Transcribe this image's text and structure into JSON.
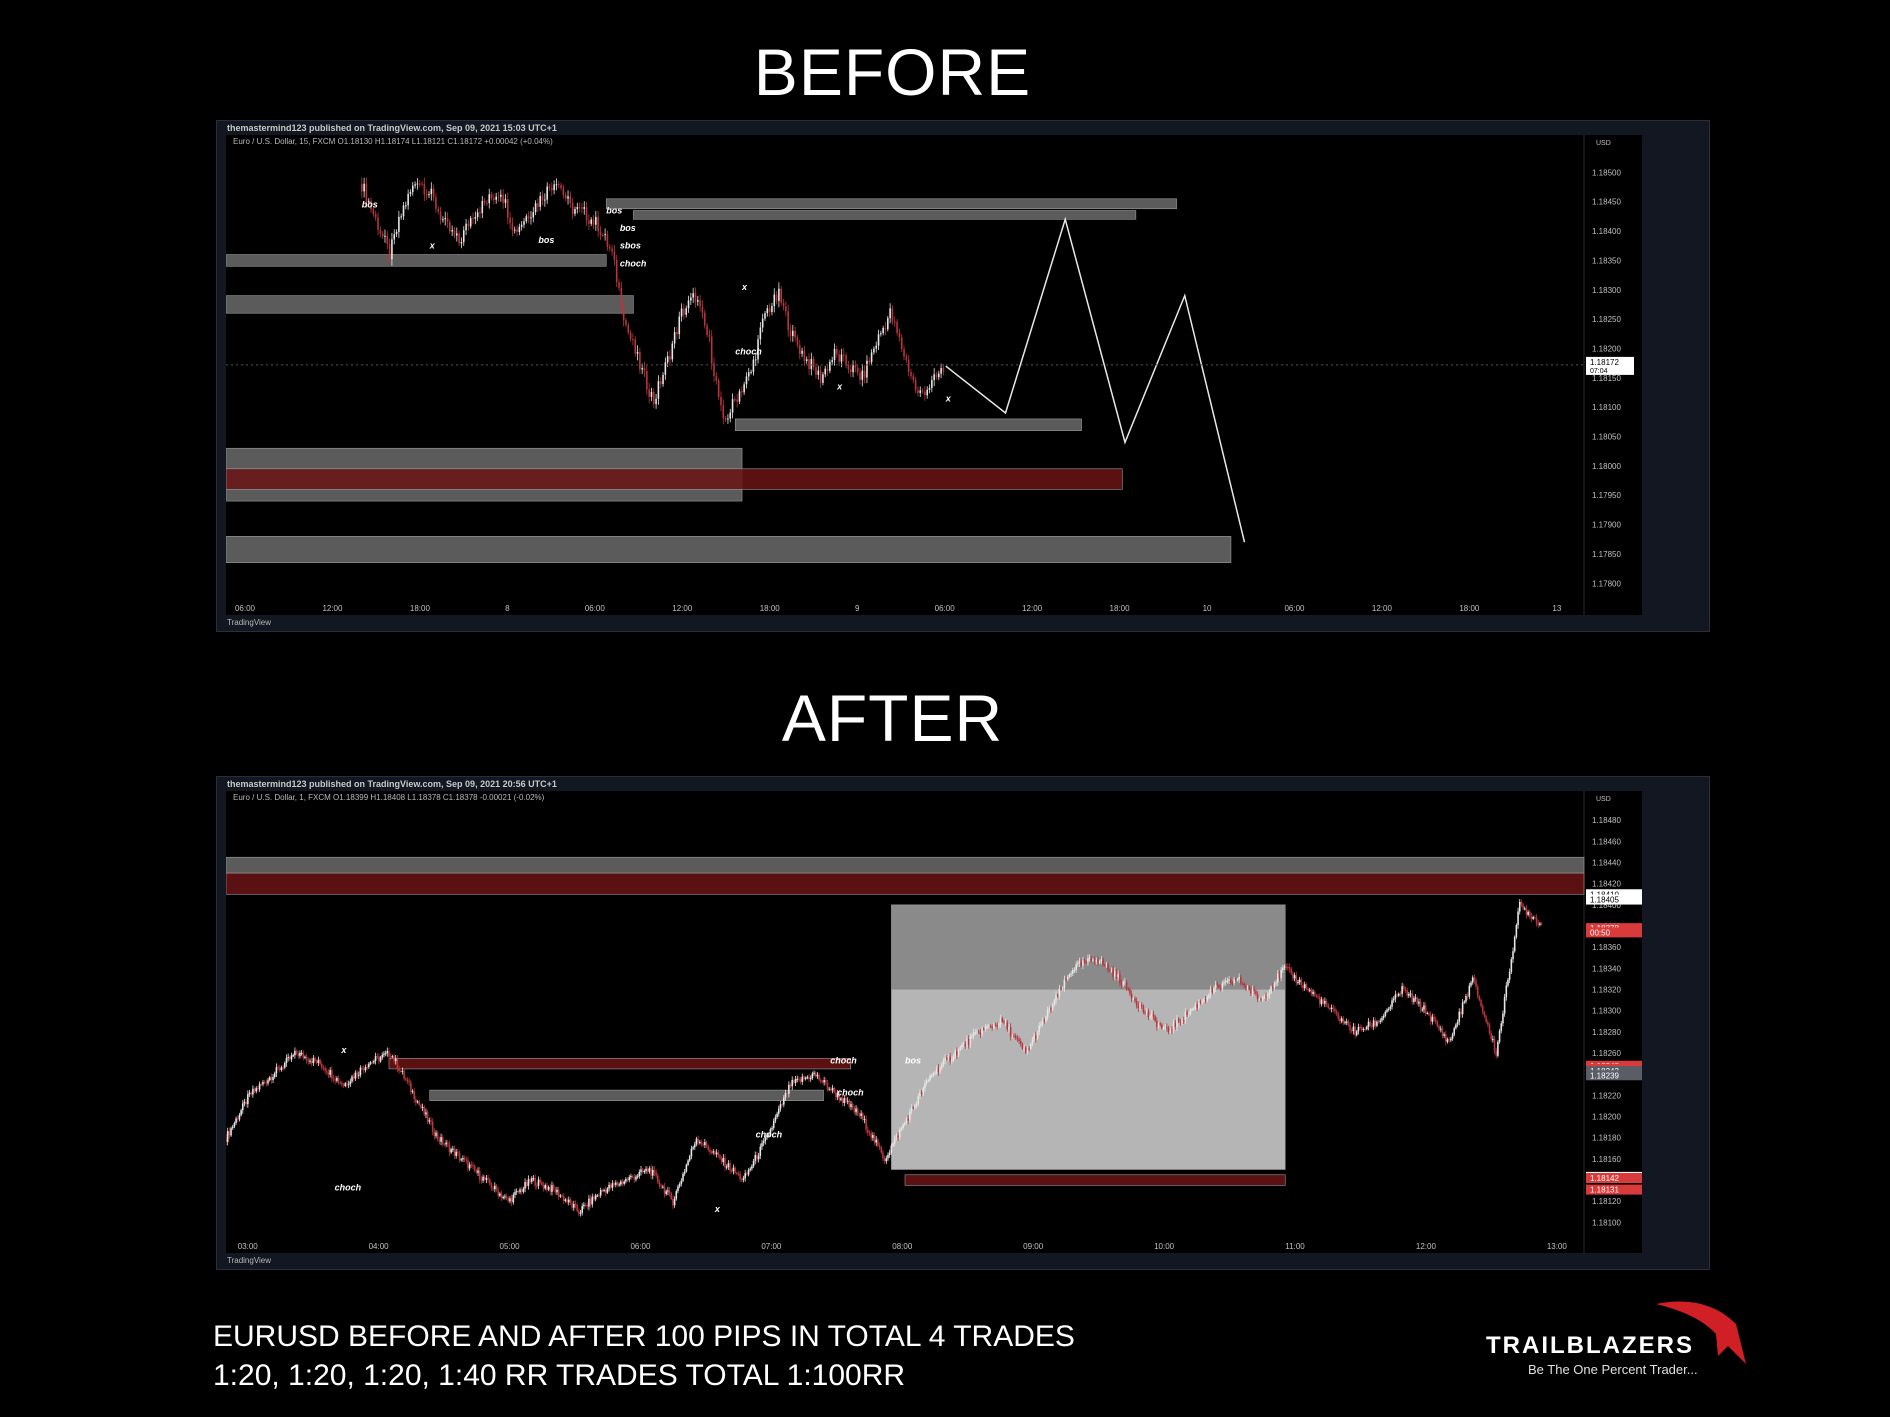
{
  "before": {
    "heading": "BEFORE",
    "publisher": "themastermind123 published on TradingView.com, Sep 09, 2021 15:03 UTC+1",
    "symbol_line": "Euro / U.S. Dollar, 15, FXCM  O1.18130  H1.18174  L1.18121  C1.18172  +0.00042 (+0.04%)",
    "logo_text": "TradingView"
  },
  "after": {
    "heading": "AFTER",
    "publisher": "themastermind123 published on TradingView.com, Sep 09, 2021 20:56 UTC+1",
    "symbol_line": "Euro / U.S. Dollar, 1, FXCM  O1.18399  H1.18408  L1.18378  C1.18378  -0.00021 (-0.02%)",
    "logo_text": "TradingView"
  },
  "caption": {
    "line1": "EURUSD BEFORE AND AFTER  100 PIPS IN TOTAL 4 TRADES",
    "line2": "1:20, 1:20, 1:20, 1:40 RR TRADES TOTAL 1:100RR"
  },
  "brand": {
    "name": "TRAILBLAZERS",
    "tagline": "Be The One Percent Trader..."
  },
  "colors": {
    "bull": "#e6e6e6",
    "bear": "#b8363b",
    "zone_grey": "#7a7a7a",
    "zone_red": "#6b1414",
    "price_red": "#d93a3a",
    "brand_red": "#d11f26"
  },
  "chart_data": [
    {
      "type": "candlestick",
      "instrument": "EUR/USD",
      "timeframe": "15",
      "currency": "USD",
      "x_ticks": [
        "06:00",
        "12:00",
        "18:00",
        "8",
        "06:00",
        "12:00",
        "18:00",
        "9",
        "06:00",
        "12:00",
        "18:00",
        "10",
        "06:00",
        "12:00",
        "18:00",
        "13"
      ],
      "y_ticks": [
        1.185,
        1.1845,
        1.184,
        1.1835,
        1.183,
        1.1825,
        1.182,
        1.1815,
        1.181,
        1.1805,
        1.18,
        1.1795,
        1.179,
        1.1785,
        1.178
      ],
      "ylim": [
        1.1778,
        1.1855
      ],
      "last_price": 1.18172,
      "countdown": "07:04",
      "close_path": [
        1.1848,
        1.1842,
        1.1836,
        1.1844,
        1.1849,
        1.1846,
        1.1841,
        1.1838,
        1.1843,
        1.1845,
        1.1847,
        1.184,
        1.1843,
        1.1846,
        1.1849,
        1.1844,
        1.1843,
        1.1841,
        1.1836,
        1.1824,
        1.1817,
        1.1811,
        1.1818,
        1.1826,
        1.1829,
        1.1821,
        1.1807,
        1.1812,
        1.1816,
        1.1826,
        1.1829,
        1.1822,
        1.1818,
        1.1815,
        1.1819,
        1.1817,
        1.1815,
        1.1821,
        1.1826,
        1.1819,
        1.1812,
        1.1814,
        1.1817
      ],
      "projection_path": [
        1.1817,
        1.1809,
        1.1842,
        1.1804,
        1.1829,
        1.1787
      ],
      "zones": [
        {
          "kind": "grey",
          "price_top": 1.18455,
          "price_bottom": 1.18438,
          "x_from": 0.28,
          "x_to": 0.7
        },
        {
          "kind": "grey",
          "price_top": 1.18435,
          "price_bottom": 1.1842,
          "x_from": 0.3,
          "x_to": 0.67
        },
        {
          "kind": "grey",
          "price_top": 1.1836,
          "price_bottom": 1.1834,
          "x_from": 0.0,
          "x_to": 0.28
        },
        {
          "kind": "grey",
          "price_top": 1.1829,
          "price_bottom": 1.1826,
          "x_from": 0.0,
          "x_to": 0.3
        },
        {
          "kind": "grey",
          "price_top": 1.1808,
          "price_bottom": 1.1806,
          "x_from": 0.375,
          "x_to": 0.63
        },
        {
          "kind": "grey",
          "price_top": 1.1803,
          "price_bottom": 1.1794,
          "x_from": 0.0,
          "x_to": 0.38
        },
        {
          "kind": "red",
          "price_top": 1.17995,
          "price_bottom": 1.1796,
          "x_from": 0.0,
          "x_to": 0.66
        },
        {
          "kind": "grey",
          "price_top": 1.1788,
          "price_bottom": 1.17835,
          "x_from": 0.0,
          "x_to": 0.74
        }
      ],
      "annotations": [
        {
          "text": "bos",
          "price": 1.1844,
          "x": 0.1
        },
        {
          "text": "bos",
          "price": 1.1843,
          "x": 0.28
        },
        {
          "text": "bos",
          "price": 1.184,
          "x": 0.29
        },
        {
          "text": "sbos",
          "price": 1.1837,
          "x": 0.29
        },
        {
          "text": "choch",
          "price": 1.1834,
          "x": 0.29
        },
        {
          "text": "bos",
          "price": 1.1838,
          "x": 0.23
        },
        {
          "text": "choch",
          "price": 1.1819,
          "x": 0.375
        },
        {
          "text": "x",
          "price": 1.1837,
          "x": 0.15
        },
        {
          "text": "x",
          "price": 1.183,
          "x": 0.38
        },
        {
          "text": "x",
          "price": 1.1813,
          "x": 0.45
        },
        {
          "text": "x",
          "price": 1.1811,
          "x": 0.53
        }
      ]
    },
    {
      "type": "candlestick",
      "instrument": "EUR/USD",
      "timeframe": "1",
      "currency": "USD",
      "x_ticks": [
        "03:00",
        "04:00",
        "05:00",
        "06:00",
        "07:00",
        "08:00",
        "09:00",
        "10:00",
        "11:00",
        "12:00",
        "13:00"
      ],
      "y_ticks": [
        1.1848,
        1.1846,
        1.1844,
        1.1842,
        1.184,
        1.1838,
        1.1836,
        1.1834,
        1.1832,
        1.183,
        1.1828,
        1.1826,
        1.1824,
        1.1822,
        1.182,
        1.1818,
        1.1816,
        1.1814,
        1.1812,
        1.181
      ],
      "ylim": [
        1.1809,
        1.185
      ],
      "price_labels": [
        {
          "price": 1.1841,
          "text": "1.18410",
          "style": "white"
        },
        {
          "price": 1.18405,
          "text": "1.18405",
          "style": "white"
        },
        {
          "price": 1.18378,
          "text": "1.18378",
          "style": "red"
        },
        {
          "price": 1.18374,
          "text": "00:50",
          "style": "red"
        },
        {
          "price": 1.18248,
          "text": "1.18248",
          "style": "red"
        },
        {
          "price": 1.18245,
          "text": "1.18245",
          "style": "red"
        },
        {
          "price": 1.18243,
          "text": "1.18243",
          "style": "grey"
        },
        {
          "price": 1.18239,
          "text": "1.18239",
          "style": "grey"
        },
        {
          "price": 1.18143,
          "text": "1.18143",
          "style": "white"
        },
        {
          "price": 1.18142,
          "text": "1.18142",
          "style": "white"
        },
        {
          "price": 1.18142,
          "text": "1.18142",
          "style": "red"
        },
        {
          "price": 1.18131,
          "text": "1.18131",
          "style": "red"
        }
      ],
      "close_path": [
        1.1818,
        1.1822,
        1.1824,
        1.1826,
        1.1825,
        1.1823,
        1.1825,
        1.1826,
        1.1822,
        1.1818,
        1.1816,
        1.1814,
        1.1812,
        1.1814,
        1.1813,
        1.1811,
        1.1813,
        1.1814,
        1.1815,
        1.1812,
        1.1818,
        1.1816,
        1.1814,
        1.1818,
        1.1823,
        1.1824,
        1.1822,
        1.182,
        1.1816,
        1.182,
        1.1824,
        1.1826,
        1.1828,
        1.1829,
        1.1826,
        1.183,
        1.1834,
        1.1835,
        1.1833,
        1.183,
        1.1828,
        1.183,
        1.1832,
        1.1833,
        1.1831,
        1.1834,
        1.1832,
        1.183,
        1.1828,
        1.1829,
        1.1832,
        1.183,
        1.1827,
        1.1833,
        1.1826,
        1.184,
        1.1838
      ],
      "zones": [
        {
          "kind": "grey",
          "price_top": 1.18445,
          "price_bottom": 1.1843,
          "x_from": 0.0,
          "x_to": 1.0
        },
        {
          "kind": "red",
          "price_top": 1.1843,
          "price_bottom": 1.1841,
          "x_from": 0.0,
          "x_to": 1.0
        },
        {
          "kind": "position_target",
          "price_top": 1.184,
          "price_bottom": 1.1832,
          "x_from": 0.49,
          "x_to": 0.78
        },
        {
          "kind": "position_stop",
          "price_top": 1.1832,
          "price_bottom": 1.1815,
          "x_from": 0.49,
          "x_to": 0.78
        },
        {
          "kind": "red",
          "price_top": 1.18145,
          "price_bottom": 1.18135,
          "x_from": 0.5,
          "x_to": 0.78
        },
        {
          "kind": "red",
          "price_top": 1.18255,
          "price_bottom": 1.18245,
          "x_from": 0.12,
          "x_to": 0.46
        },
        {
          "kind": "grey",
          "price_top": 1.18225,
          "price_bottom": 1.18215,
          "x_from": 0.15,
          "x_to": 0.44
        }
      ],
      "annotations": [
        {
          "text": "x",
          "price": 1.1826,
          "x": 0.085
        },
        {
          "text": "choch",
          "price": 1.1813,
          "x": 0.08
        },
        {
          "text": "choch",
          "price": 1.1818,
          "x": 0.39
        },
        {
          "text": "x",
          "price": 1.1811,
          "x": 0.36
        },
        {
          "text": "choch",
          "price": 1.1825,
          "x": 0.445
        },
        {
          "text": "choch",
          "price": 1.1822,
          "x": 0.45
        },
        {
          "text": "bos",
          "price": 1.1825,
          "x": 0.5
        }
      ]
    }
  ]
}
